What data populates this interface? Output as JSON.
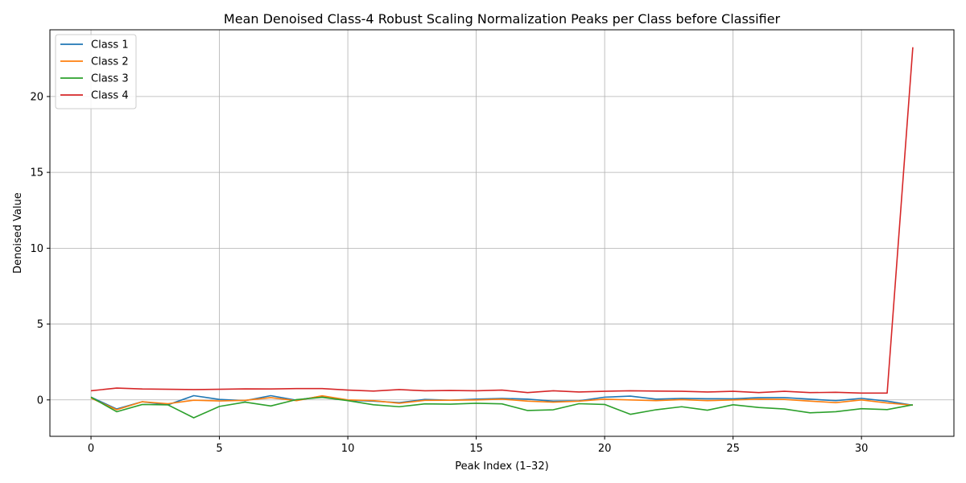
{
  "chart_data": {
    "type": "line",
    "title": "Mean Denoised Class-4 Robust Scaling Normalization Peaks per Class before Classifier",
    "xlabel": "Peak Index (1–32)",
    "ylabel": "Denoised Value",
    "xlim": [
      -1.6,
      33.6
    ],
    "ylim": [
      -2.4,
      24.4
    ],
    "xticks": [
      0,
      5,
      10,
      15,
      20,
      25,
      30
    ],
    "yticks": [
      0,
      5,
      10,
      15,
      20
    ],
    "grid": true,
    "legend_position": "upper-left",
    "x": [
      0,
      1,
      2,
      3,
      4,
      5,
      6,
      7,
      8,
      9,
      10,
      11,
      12,
      13,
      14,
      15,
      16,
      17,
      18,
      19,
      20,
      21,
      22,
      23,
      24,
      25,
      26,
      27,
      28,
      29,
      30,
      31,
      32
    ],
    "series": [
      {
        "name": "Class 1",
        "color": "#1f77b4",
        "values": [
          0.18,
          -0.6,
          -0.12,
          -0.32,
          0.28,
          0.03,
          -0.05,
          0.28,
          -0.02,
          0.25,
          -0.03,
          -0.08,
          -0.18,
          0.03,
          -0.02,
          0.05,
          0.1,
          0.05,
          -0.08,
          -0.06,
          0.18,
          0.25,
          0.05,
          0.1,
          0.08,
          0.07,
          0.15,
          0.15,
          0.05,
          -0.05,
          0.1,
          -0.08,
          -0.35
        ]
      },
      {
        "name": "Class 2",
        "color": "#ff7f0e",
        "values": [
          0.12,
          -0.65,
          -0.12,
          -0.25,
          -0.02,
          -0.07,
          -0.03,
          0.15,
          -0.05,
          0.27,
          0.0,
          -0.05,
          -0.22,
          -0.03,
          -0.02,
          0.0,
          0.05,
          -0.08,
          -0.15,
          -0.08,
          0.05,
          0.0,
          -0.05,
          0.02,
          -0.05,
          0.0,
          0.05,
          0.03,
          -0.08,
          -0.18,
          0.0,
          -0.2,
          -0.35
        ]
      },
      {
        "name": "Class 3",
        "color": "#2ca02c",
        "values": [
          0.18,
          -0.78,
          -0.3,
          -0.33,
          -1.18,
          -0.43,
          -0.15,
          -0.4,
          0.02,
          0.17,
          -0.05,
          -0.32,
          -0.45,
          -0.26,
          -0.28,
          -0.22,
          -0.26,
          -0.7,
          -0.65,
          -0.25,
          -0.3,
          -0.95,
          -0.65,
          -0.45,
          -0.68,
          -0.32,
          -0.5,
          -0.6,
          -0.85,
          -0.78,
          -0.58,
          -0.64,
          -0.32
        ]
      },
      {
        "name": "Class 4",
        "color": "#d62728",
        "values": [
          0.6,
          0.78,
          0.72,
          0.7,
          0.68,
          0.7,
          0.73,
          0.72,
          0.75,
          0.75,
          0.65,
          0.58,
          0.68,
          0.6,
          0.62,
          0.6,
          0.65,
          0.48,
          0.6,
          0.52,
          0.57,
          0.6,
          0.58,
          0.57,
          0.52,
          0.57,
          0.48,
          0.57,
          0.48,
          0.5,
          0.45,
          0.45,
          23.25
        ]
      }
    ]
  }
}
